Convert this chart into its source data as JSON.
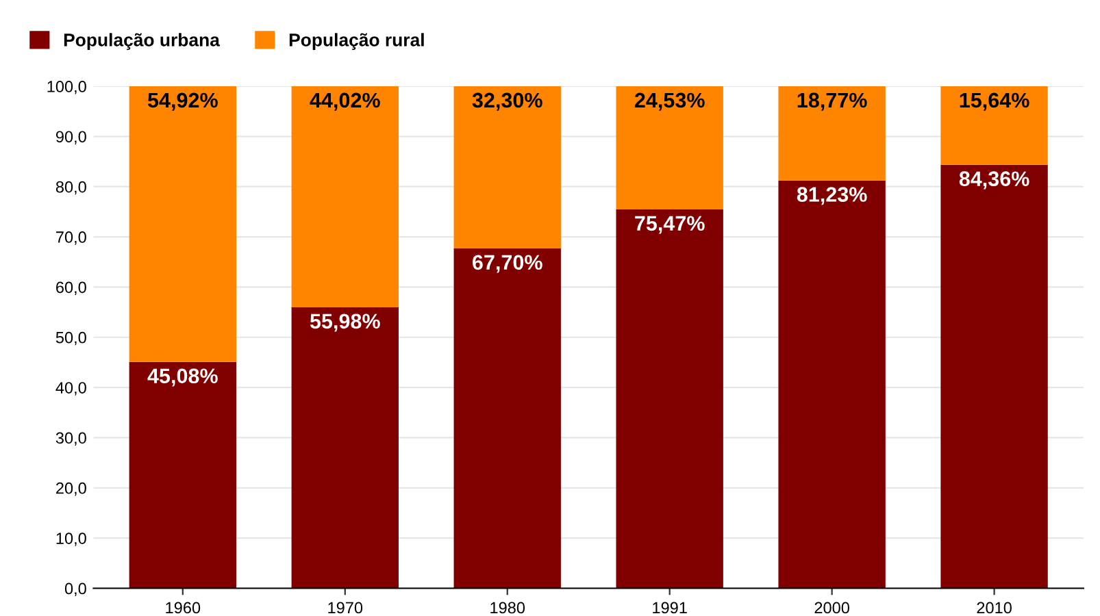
{
  "chart_data": {
    "type": "bar",
    "stacked": true,
    "categories": [
      "1960",
      "1970",
      "1980",
      "1991",
      "2000",
      "2010"
    ],
    "series": [
      {
        "name": "População urbana",
        "color": "#800000",
        "values": [
          45.08,
          55.98,
          67.7,
          75.47,
          81.23,
          84.36
        ],
        "value_labels": [
          "45,08%",
          "55,98%",
          "67,70%",
          "75,47%",
          "81,23%",
          "84,36%"
        ]
      },
      {
        "name": "População rural",
        "color": "#ff8400",
        "values": [
          54.92,
          44.02,
          32.3,
          24.53,
          18.77,
          15.64
        ],
        "value_labels": [
          "54,92%",
          "44,02%",
          "32,30%",
          "24,53%",
          "18,77%",
          "15,64%"
        ]
      }
    ],
    "ylim": [
      0,
      100
    ],
    "yticks": [
      {
        "value": 0,
        "label": "0,0"
      },
      {
        "value": 10,
        "label": "10,0"
      },
      {
        "value": 20,
        "label": "20,0"
      },
      {
        "value": 30,
        "label": "30,0"
      },
      {
        "value": 40,
        "label": "40,0"
      },
      {
        "value": 50,
        "label": "50,0"
      },
      {
        "value": 60,
        "label": "60,0"
      },
      {
        "value": 70,
        "label": "70,0"
      },
      {
        "value": 80,
        "label": "80,0"
      },
      {
        "value": 90,
        "label": "90,0"
      },
      {
        "value": 100,
        "label": "100,0"
      }
    ],
    "grid": "y",
    "legend": "top left"
  }
}
